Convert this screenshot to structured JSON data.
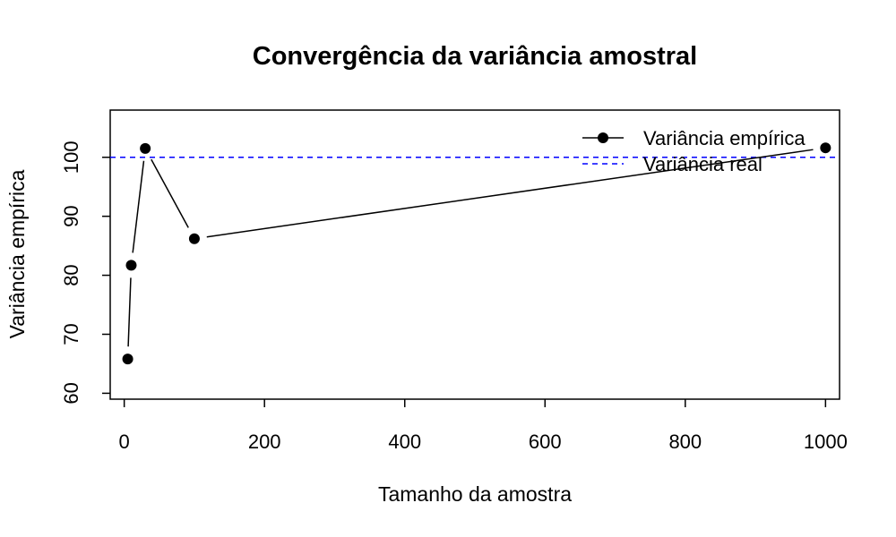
{
  "chart_data": {
    "type": "line",
    "title": "Convergência da variância amostral",
    "xlabel": "Tamanho da amostra",
    "ylabel": "Variância empírica",
    "xlim": [
      -20,
      1020
    ],
    "ylim": [
      59,
      108
    ],
    "x_ticks": [
      0,
      200,
      400,
      600,
      800,
      1000
    ],
    "y_ticks": [
      60,
      70,
      80,
      90,
      100
    ],
    "grid": false,
    "legend_position": "top-right",
    "series": [
      {
        "name": "Variância empírica",
        "color": "#000000",
        "style": "line-points",
        "x": [
          5,
          10,
          30,
          100,
          1000
        ],
        "y": [
          65.8,
          81.7,
          101.5,
          86.2,
          101.6
        ]
      }
    ],
    "reference_lines": [
      {
        "name": "Variância real",
        "y": 100,
        "color": "#0000ff",
        "style": "dashed"
      }
    ]
  }
}
